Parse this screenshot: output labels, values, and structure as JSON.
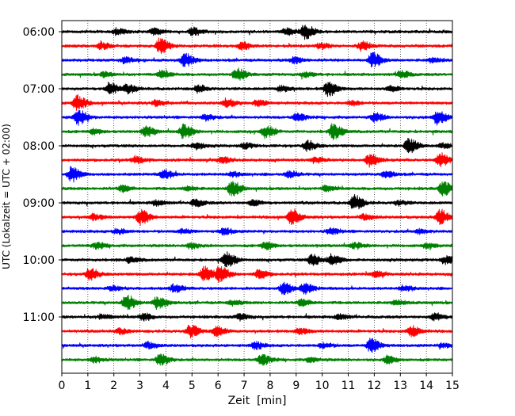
{
  "chart_data": {
    "type": "line",
    "subtype": "seismogram-helicorder",
    "xlabel": "Zeit  [min]",
    "ylabel": "UTC (Lokalzeit = UTC + 02:00)",
    "xlim": [
      0,
      15
    ],
    "x_ticks": [
      "0",
      "1",
      "2",
      "3",
      "4",
      "5",
      "6",
      "7",
      "8",
      "9",
      "10",
      "11",
      "12",
      "13",
      "14",
      "15"
    ],
    "y_ticks": [
      "06:00",
      "07:00",
      "08:00",
      "09:00",
      "10:00",
      "11:00"
    ],
    "grid": "vertical dotted at every minute",
    "trace_colors": [
      "#000000",
      "#ff0000",
      "#0000ff",
      "#008000"
    ],
    "trace_count": 24,
    "trace_start_times": [
      "06:00",
      "06:15",
      "06:30",
      "06:45",
      "07:00",
      "07:15",
      "07:30",
      "07:45",
      "08:00",
      "08:15",
      "08:30",
      "08:45",
      "09:00",
      "09:15",
      "09:30",
      "09:45",
      "10:00",
      "10:15",
      "10:30",
      "10:45",
      "11:00",
      "11:15",
      "11:30",
      "11:45"
    ],
    "events": [
      [
        [
          9.3,
          1.0
        ],
        [
          5.0,
          0.5
        ],
        [
          2.1,
          0.45
        ],
        [
          8.6,
          0.45
        ],
        [
          3.5,
          0.4
        ]
      ],
      [
        [
          3.75,
          1.0
        ],
        [
          11.5,
          0.6
        ],
        [
          6.9,
          0.5
        ],
        [
          1.5,
          0.4
        ],
        [
          9.9,
          0.35
        ]
      ],
      [
        [
          11.9,
          1.0
        ],
        [
          4.7,
          0.85
        ],
        [
          8.9,
          0.4
        ],
        [
          2.4,
          0.35
        ],
        [
          14.2,
          0.3
        ]
      ],
      [
        [
          6.7,
          0.8
        ],
        [
          13.0,
          0.5
        ],
        [
          3.8,
          0.45
        ],
        [
          9.3,
          0.35
        ],
        [
          1.6,
          0.3
        ]
      ],
      [
        [
          10.2,
          1.0
        ],
        [
          1.8,
          0.8
        ],
        [
          2.5,
          0.55
        ],
        [
          5.2,
          0.45
        ],
        [
          8.4,
          0.4
        ],
        [
          12.6,
          0.35
        ]
      ],
      [
        [
          0.55,
          1.0
        ],
        [
          6.3,
          0.55
        ],
        [
          7.5,
          0.4
        ],
        [
          3.6,
          0.35
        ],
        [
          11.1,
          0.3
        ]
      ],
      [
        [
          0.6,
          1.0
        ],
        [
          14.4,
          1.0
        ],
        [
          12.0,
          0.55
        ],
        [
          9.0,
          0.5
        ],
        [
          5.5,
          0.4
        ]
      ],
      [
        [
          10.4,
          1.0
        ],
        [
          4.65,
          0.9
        ],
        [
          7.8,
          0.8
        ],
        [
          3.2,
          0.65
        ],
        [
          1.2,
          0.35
        ]
      ],
      [
        [
          13.3,
          1.0
        ],
        [
          9.4,
          0.7
        ],
        [
          5.1,
          0.45
        ],
        [
          7.0,
          0.35
        ],
        [
          14.6,
          0.3
        ]
      ],
      [
        [
          14.5,
          0.9
        ],
        [
          11.8,
          0.8
        ],
        [
          2.8,
          0.45
        ],
        [
          6.1,
          0.4
        ],
        [
          9.7,
          0.35
        ]
      ],
      [
        [
          0.35,
          0.95
        ],
        [
          3.9,
          0.6
        ],
        [
          8.7,
          0.45
        ],
        [
          12.4,
          0.4
        ],
        [
          6.5,
          0.3
        ]
      ],
      [
        [
          6.5,
          1.0
        ],
        [
          14.6,
          0.95
        ],
        [
          2.3,
          0.4
        ],
        [
          10.1,
          0.35
        ],
        [
          4.8,
          0.3
        ]
      ],
      [
        [
          11.2,
          1.0
        ],
        [
          5.1,
          0.5
        ],
        [
          7.3,
          0.4
        ],
        [
          3.6,
          0.35
        ],
        [
          12.9,
          0.3
        ]
      ],
      [
        [
          3.0,
          1.0
        ],
        [
          8.8,
          1.0
        ],
        [
          14.5,
          1.0
        ],
        [
          1.2,
          0.4
        ],
        [
          11.6,
          0.35
        ]
      ],
      [
        [
          6.2,
          0.45
        ],
        [
          10.3,
          0.4
        ],
        [
          2.1,
          0.35
        ],
        [
          13.7,
          0.3
        ],
        [
          4.6,
          0.3
        ]
      ],
      [
        [
          7.8,
          0.5
        ],
        [
          1.3,
          0.4
        ],
        [
          4.9,
          0.4
        ],
        [
          11.2,
          0.35
        ],
        [
          14.0,
          0.3
        ]
      ],
      [
        [
          6.3,
          1.0
        ],
        [
          9.6,
          0.75
        ],
        [
          10.35,
          0.75
        ],
        [
          14.7,
          0.5
        ],
        [
          2.6,
          0.35
        ]
      ],
      [
        [
          5.45,
          1.0
        ],
        [
          6.05,
          1.0
        ],
        [
          1.05,
          0.8
        ],
        [
          7.55,
          0.6
        ],
        [
          12.0,
          0.4
        ]
      ],
      [
        [
          8.5,
          0.85
        ],
        [
          9.3,
          0.7
        ],
        [
          4.3,
          0.5
        ],
        [
          13.1,
          0.35
        ],
        [
          1.9,
          0.3
        ]
      ],
      [
        [
          2.45,
          1.0
        ],
        [
          3.65,
          0.9
        ],
        [
          9.2,
          0.45
        ],
        [
          6.5,
          0.35
        ],
        [
          12.8,
          0.3
        ]
      ],
      [
        [
          14.3,
          0.5
        ],
        [
          3.1,
          0.45
        ],
        [
          6.8,
          0.4
        ],
        [
          10.6,
          0.35
        ],
        [
          1.5,
          0.3
        ]
      ],
      [
        [
          4.9,
          0.85
        ],
        [
          5.9,
          0.65
        ],
        [
          13.4,
          0.7
        ],
        [
          9.1,
          0.4
        ],
        [
          2.2,
          0.35
        ]
      ],
      [
        [
          11.85,
          1.0
        ],
        [
          7.4,
          0.45
        ],
        [
          3.3,
          0.4
        ],
        [
          10.0,
          0.35
        ],
        [
          14.6,
          0.3
        ]
      ],
      [
        [
          3.75,
          0.8
        ],
        [
          7.65,
          0.7
        ],
        [
          12.5,
          0.5
        ],
        [
          1.2,
          0.35
        ],
        [
          9.5,
          0.3
        ]
      ]
    ]
  }
}
